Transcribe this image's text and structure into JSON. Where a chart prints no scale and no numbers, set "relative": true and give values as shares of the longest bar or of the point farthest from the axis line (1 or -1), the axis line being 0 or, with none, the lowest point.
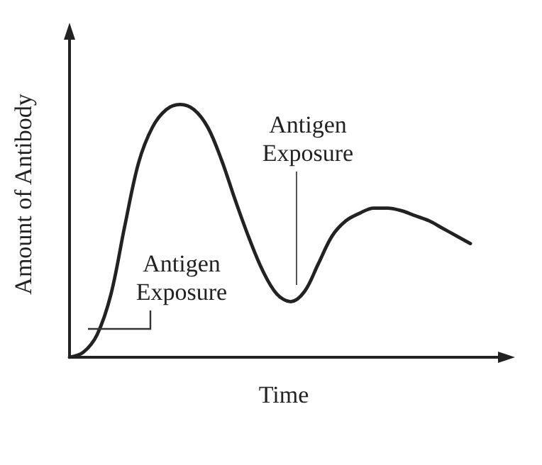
{
  "chart_data": {
    "type": "line",
    "relative": true,
    "xlabel": "Time",
    "ylabel": "Amount of Antibody",
    "categories": [
      null,
      null,
      null,
      null,
      null,
      null,
      null,
      null,
      null,
      null,
      null,
      null,
      null,
      null,
      null,
      null,
      null,
      null,
      null,
      null,
      null,
      null,
      null,
      null,
      null,
      null,
      null,
      null,
      null,
      null,
      null,
      null
    ],
    "series": [
      {
        "color": "#222222",
        "values": [
          0,
          0.02,
          0.09,
          0.25,
          0.52,
          0.77,
          0.91,
          0.98,
          1.0,
          0.98,
          0.91,
          0.78,
          0.62,
          0.47,
          0.34,
          0.25,
          0.22,
          0.26,
          0.37,
          0.48,
          0.54,
          0.57,
          0.59,
          0.59,
          0.58,
          0.56,
          0.54,
          0.51,
          0.48,
          0.45,
          null,
          null
        ]
      }
    ],
    "annotations": [
      "Antigen\nExposure",
      "Antigen\nExposure"
    ],
    "grid": false,
    "marker": "none",
    "line_style": "solid"
  }
}
